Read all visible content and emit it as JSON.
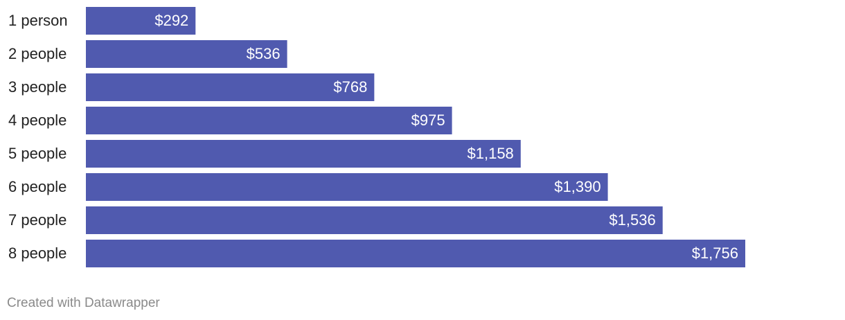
{
  "chart_data": {
    "type": "bar",
    "orientation": "horizontal",
    "categories": [
      "1 person",
      "2 people",
      "3 people",
      "4 people",
      "5 people",
      "6 people",
      "7 people",
      "8 people"
    ],
    "values": [
      292,
      536,
      768,
      975,
      1158,
      1390,
      1536,
      1756
    ],
    "value_labels": [
      "$292",
      "$536",
      "$768",
      "$975",
      "$1,158",
      "$1,390",
      "$1,536",
      "$1,756"
    ],
    "color": "#505aaf",
    "xlim": [
      0,
      1756
    ]
  },
  "footer": "Created with Datawrapper"
}
